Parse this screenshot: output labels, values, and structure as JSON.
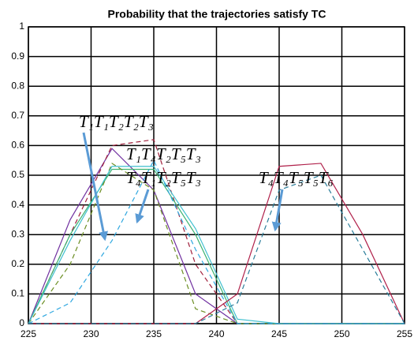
{
  "chart_data": {
    "type": "line",
    "title": "Probability that the trajectories satisfy TC",
    "x": [
      225,
      228.33,
      231.67,
      235,
      238.33,
      241.67,
      245,
      248.33,
      251.67,
      255
    ],
    "series": [
      {
        "color": "#7030a0",
        "dash": false,
        "values": [
          0,
          0.35,
          0.59,
          0.45,
          0.1,
          0,
          0,
          0,
          0,
          0
        ]
      },
      {
        "color": "#a0203c",
        "dash": true,
        "values": [
          0,
          0.3,
          0.6,
          0.62,
          0.2,
          0,
          0,
          0,
          0,
          0
        ]
      },
      {
        "color": "#3cb371",
        "dash": false,
        "values": [
          0,
          0.3,
          0.52,
          0.52,
          0.3,
          0,
          0,
          0,
          0,
          0
        ]
      },
      {
        "color": "#6b8e23",
        "dash": true,
        "values": [
          0,
          0.2,
          0.54,
          0.45,
          0.05,
          0,
          0,
          0,
          0,
          0
        ]
      },
      {
        "color": "#40c0d0",
        "dash": false,
        "values": [
          0,
          0.28,
          0.53,
          0.53,
          0.32,
          0.015,
          0,
          0,
          0,
          0
        ]
      },
      {
        "color": "#30a8e0",
        "dash": true,
        "values": [
          0,
          0.07,
          0.28,
          0.55,
          0.25,
          0,
          0,
          0,
          0,
          0
        ]
      },
      {
        "color": "#b0204a",
        "dash": false,
        "values": [
          0,
          0,
          0,
          0,
          0,
          0.1,
          0.53,
          0.54,
          0.3,
          0
        ]
      },
      {
        "color": "#2a7d9a",
        "dash": true,
        "values": [
          0,
          0,
          0,
          0,
          0,
          0.07,
          0.45,
          0.5,
          0.25,
          0
        ]
      }
    ],
    "annotations": [
      "T₁T₁T₂T₂T₃",
      "T₁T₄T₂T₅T₃",
      "T₄T₁T₂T₅T₃",
      "T₄T₄T₅T₅T₆"
    ],
    "xlim": [
      225,
      255
    ],
    "xticks": [
      225,
      230,
      235,
      240,
      245,
      250,
      255
    ],
    "ylim": [
      0,
      1
    ],
    "yticks": [
      0,
      0.1,
      0.2,
      0.3,
      0.4,
      0.5,
      0.6,
      0.7,
      0.8,
      0.9,
      1
    ],
    "grid": true
  }
}
